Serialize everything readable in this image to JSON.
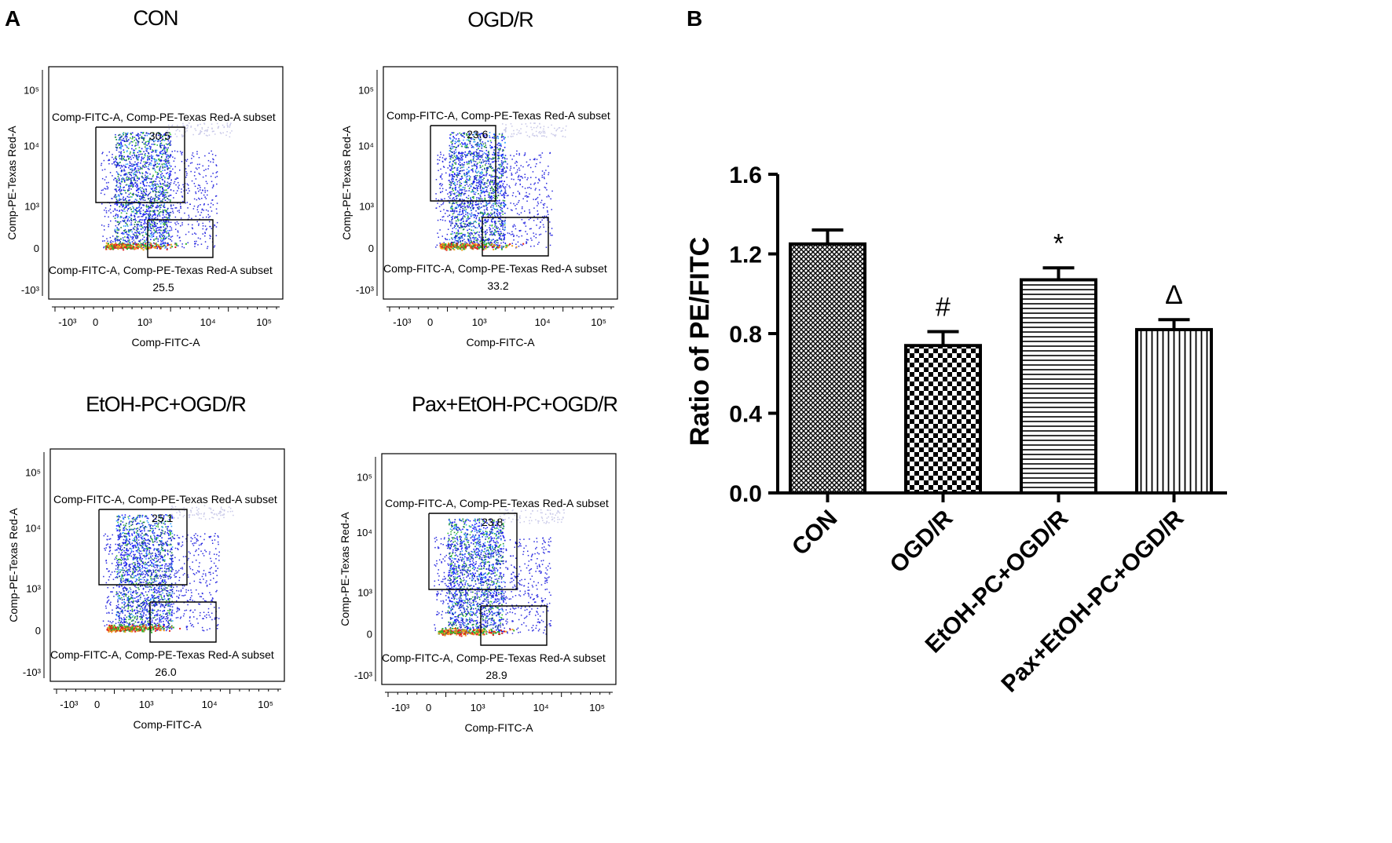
{
  "panel_a_label": "A",
  "panel_b_label": "B",
  "facs_plots": [
    {
      "title": "CON",
      "upper_gate_label": "Comp-FITC-A, Comp-PE-Texas Red-A subset",
      "upper_value": "30.5",
      "lower_gate_label": "Comp-FITC-A, Comp-PE-Texas Red-A subset",
      "lower_value": "25.5"
    },
    {
      "title": "OGD/R",
      "upper_gate_label": "Comp-FITC-A, Comp-PE-Texas Red-A subset",
      "upper_value": "23.6",
      "lower_gate_label": "Comp-FITC-A, Comp-PE-Texas Red-A subset",
      "lower_value": "33.2"
    },
    {
      "title": "EtOH-PC+OGD/R",
      "upper_gate_label": "Comp-FITC-A, Comp-PE-Texas Red-A subset",
      "upper_value": "25.1",
      "lower_gate_label": "Comp-FITC-A, Comp-PE-Texas Red-A subset",
      "lower_value": "26.0"
    },
    {
      "title": "Pax+EtOH-PC+OGD/R",
      "upper_gate_label": "Comp-FITC-A, Comp-PE-Texas Red-A subset",
      "upper_value": "23.8",
      "lower_gate_label": "Comp-FITC-A, Comp-PE-Texas Red-A subset",
      "lower_value": "28.9"
    }
  ],
  "facs_axes": {
    "xlabel": "Comp-FITC-A",
    "ylabel": "Comp-PE-Texas Red-A",
    "x_tick_labels": [
      "-10³",
      "0",
      "10³",
      "10⁴",
      "10⁵"
    ],
    "y_tick_labels": [
      "10⁵",
      "10⁴",
      "10³",
      "0",
      "-10³"
    ]
  },
  "chart_data": {
    "type": "bar",
    "title": "",
    "xlabel": "",
    "ylabel": "Ratio of PE/FITC",
    "categories": [
      "CON",
      "OGD/R",
      "EtOH-PC+OGD/R",
      "Pax+EtOH-PC+OGD/R"
    ],
    "values": [
      1.25,
      0.74,
      1.07,
      0.82
    ],
    "errors": [
      0.07,
      0.07,
      0.06,
      0.05
    ],
    "annotations": [
      "",
      "#",
      "*",
      "Δ"
    ],
    "patterns": [
      "crosshatch",
      "checker",
      "horizontal-lines",
      "vertical-lines"
    ],
    "ylim": [
      0,
      1.6
    ],
    "yticks": [
      0.0,
      0.4,
      0.8,
      1.2,
      1.6
    ],
    "ytick_labels": [
      "0.0",
      "0.4",
      "0.8",
      "1.2",
      "1.6"
    ]
  }
}
